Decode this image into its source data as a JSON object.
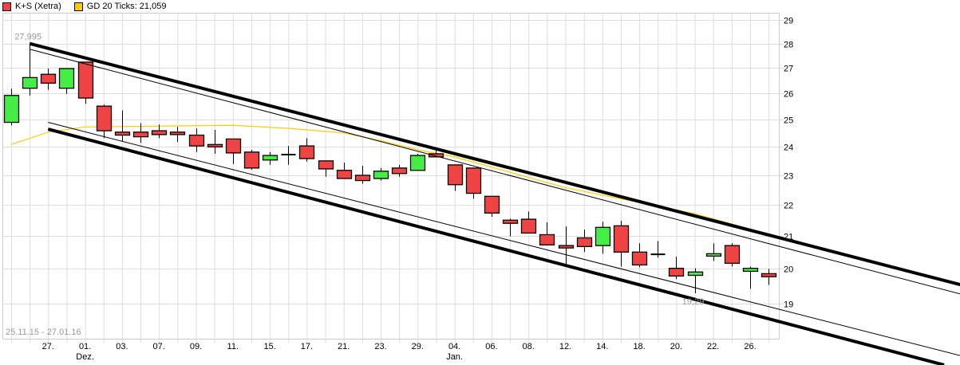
{
  "legend": [
    {
      "label": "K+S (Xetra)",
      "color": "#f04444"
    },
    {
      "label": "GD 20 Ticks: 21,059",
      "color": "#ffcc00"
    }
  ],
  "date_range_label": "25.11.15 - 27.01.16",
  "chart_data": {
    "type": "candlestick",
    "y_scale": "log",
    "ylim": [
      18.6,
      29.2
    ],
    "y_ticks": [
      19,
      20,
      21,
      22,
      23,
      24,
      25,
      26,
      27,
      28,
      29
    ],
    "grid": true,
    "x_tick_labels": [
      {
        "index": 2,
        "label": "27."
      },
      {
        "index": 4,
        "label": "01.",
        "sub": "Dez."
      },
      {
        "index": 6,
        "label": "03."
      },
      {
        "index": 8,
        "label": "07."
      },
      {
        "index": 10,
        "label": "09."
      },
      {
        "index": 12,
        "label": "11."
      },
      {
        "index": 14,
        "label": "15."
      },
      {
        "index": 16,
        "label": "17."
      },
      {
        "index": 18,
        "label": "21."
      },
      {
        "index": 20,
        "label": "23."
      },
      {
        "index": 22,
        "label": "29."
      },
      {
        "index": 24,
        "label": "04.",
        "sub": "Jan."
      },
      {
        "index": 26,
        "label": "06."
      },
      {
        "index": 28,
        "label": "08."
      },
      {
        "index": 30,
        "label": "12."
      },
      {
        "index": 32,
        "label": "14."
      },
      {
        "index": 34,
        "label": "18."
      },
      {
        "index": 36,
        "label": "20."
      },
      {
        "index": 38,
        "label": "22."
      },
      {
        "index": 40,
        "label": "26."
      }
    ],
    "ohlc": [
      [
        24.89,
        26.17,
        24.78,
        25.91
      ],
      [
        26.19,
        27.995,
        25.91,
        26.61
      ],
      [
        26.74,
        26.97,
        26.13,
        26.39
      ],
      [
        26.19,
        26.97,
        25.97,
        26.97
      ],
      [
        27.23,
        27.23,
        25.59,
        25.81
      ],
      [
        25.5,
        25.56,
        24.31,
        24.58
      ],
      [
        24.53,
        25.34,
        24.19,
        24.42
      ],
      [
        24.53,
        24.86,
        24.14,
        24.36
      ],
      [
        24.58,
        24.81,
        24.31,
        24.44
      ],
      [
        24.53,
        24.72,
        24.17,
        24.44
      ],
      [
        24.42,
        24.67,
        23.81,
        24.03
      ],
      [
        24.08,
        24.61,
        23.75,
        24.0
      ],
      [
        24.28,
        24.28,
        23.39,
        23.78
      ],
      [
        23.81,
        23.89,
        23.19,
        23.25
      ],
      [
        23.53,
        23.81,
        23.36,
        23.69
      ],
      [
        23.72,
        24.03,
        23.36,
        23.72
      ],
      [
        24.03,
        24.31,
        23.47,
        23.58
      ],
      [
        23.5,
        23.5,
        22.95,
        23.22
      ],
      [
        23.17,
        23.44,
        22.89,
        22.89
      ],
      [
        23.0,
        23.33,
        22.71,
        22.82
      ],
      [
        22.89,
        23.25,
        22.82,
        23.14
      ],
      [
        23.25,
        23.36,
        22.95,
        23.06
      ],
      [
        23.17,
        23.75,
        23.17,
        23.69
      ],
      [
        23.75,
        23.89,
        23.64,
        23.64
      ],
      [
        23.36,
        23.36,
        22.47,
        22.68
      ],
      [
        23.25,
        23.25,
        22.21,
        22.39
      ],
      [
        22.29,
        22.29,
        21.62,
        21.74
      ],
      [
        21.51,
        21.56,
        21.0,
        21.41
      ],
      [
        21.54,
        21.79,
        21.1,
        21.1
      ],
      [
        21.05,
        21.44,
        20.73,
        20.73
      ],
      [
        20.71,
        21.31,
        20.15,
        20.66
      ],
      [
        20.95,
        21.21,
        20.51,
        20.68
      ],
      [
        20.71,
        21.46,
        20.46,
        21.28
      ],
      [
        21.33,
        21.49,
        20.07,
        20.51
      ],
      [
        20.51,
        20.78,
        20.05,
        20.12
      ],
      [
        20.44,
        20.85,
        20.34,
        20.44
      ],
      [
        20.02,
        20.37,
        19.7,
        19.79
      ],
      [
        19.81,
        20.02,
        19.29,
        19.91
      ],
      [
        20.39,
        20.78,
        20.24,
        20.46
      ],
      [
        20.71,
        20.78,
        20.07,
        20.17
      ],
      [
        19.93,
        20.07,
        19.42,
        20.02
      ],
      [
        19.86,
        20.0,
        19.53,
        19.77
      ]
    ],
    "moving_average": {
      "name": "GD 20 Ticks",
      "points": [
        [
          0,
          24.08
        ],
        [
          2,
          24.53
        ],
        [
          4,
          24.72
        ],
        [
          8,
          24.75
        ],
        [
          12,
          24.78
        ],
        [
          15,
          24.67
        ],
        [
          18,
          24.5
        ],
        [
          20,
          24.22
        ],
        [
          22,
          23.89
        ],
        [
          24,
          23.64
        ],
        [
          30,
          22.58
        ],
        [
          37,
          21.72
        ],
        [
          41,
          21.059
        ]
      ]
    },
    "trend_lines": [
      {
        "style": "thick",
        "from": [
          1,
          27.995
        ],
        "to": [
          51.5,
          19.52
        ]
      },
      {
        "style": "thin",
        "from": [
          1,
          27.76
        ],
        "to": [
          51.5,
          19.25
        ]
      },
      {
        "style": "thin",
        "from": [
          2,
          24.89
        ],
        "to": [
          51.5,
          17.56
        ]
      },
      {
        "style": "thick",
        "from": [
          2,
          24.64
        ],
        "to": [
          50.5,
          17.33
        ]
      }
    ],
    "annotations": [
      {
        "index": 1,
        "price": 27.995,
        "label": "27,995"
      },
      {
        "index": 37,
        "price": 19.29,
        "label": "19,29"
      }
    ],
    "colors": {
      "up": "#44ee44",
      "down": "#f04444",
      "ma": "#ffcc00",
      "grid": "#dddddd"
    }
  }
}
